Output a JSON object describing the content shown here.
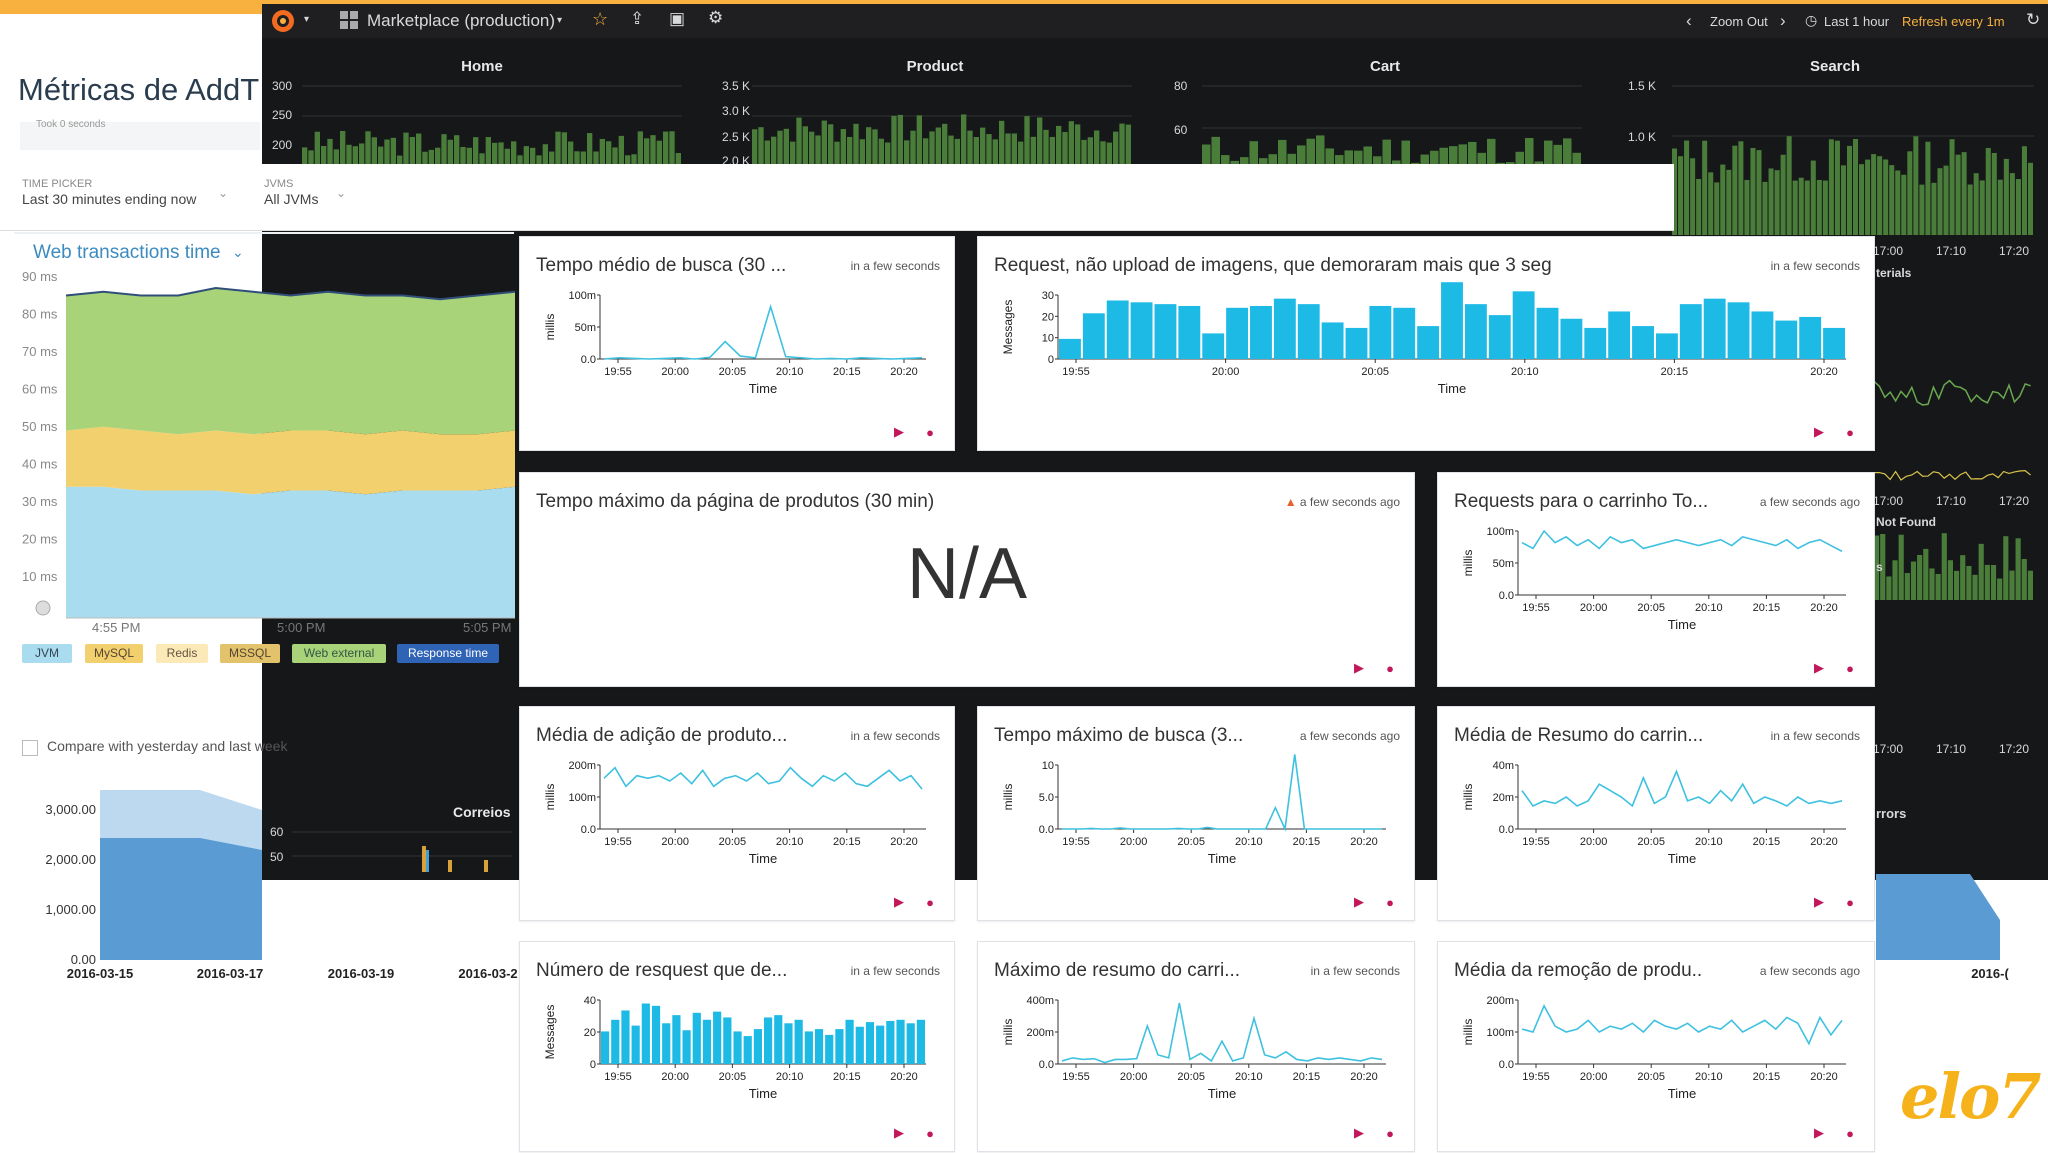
{
  "grafana": {
    "dashboard": "Marketplace (production)",
    "zoom_out": "Zoom Out",
    "time_range": "Last 1 hour",
    "refresh": "Refresh every 1m",
    "panels": [
      {
        "title": "Home",
        "yticks": [
          "300",
          "250",
          "200"
        ]
      },
      {
        "title": "Product",
        "yticks": [
          "3.5 K",
          "3.0 K",
          "2.5 K",
          "2.0 K"
        ]
      },
      {
        "title": "Cart",
        "yticks": [
          "80",
          "60"
        ]
      },
      {
        "title": "Search",
        "yticks": [
          "1.5 K",
          "1.0 K"
        ]
      }
    ],
    "right_xticks": [
      "17:00",
      "17:10",
      "17:20"
    ],
    "right_labels": [
      "terials",
      "Not Found",
      "s",
      "rrors"
    ],
    "correios": {
      "title": "Correios",
      "yticks": [
        "60",
        "50"
      ]
    }
  },
  "newrelic": {
    "title": "Métricas de AddT",
    "took": "Took 0 seconds",
    "time_picker_label": "TIME PICKER",
    "time_picker_value": "Last 30 minutes ending now",
    "jvms_label": "JVMS",
    "jvms_value": "All JVMs",
    "web_tx_title": "Web transactions time",
    "yticks": [
      "90 ms",
      "80 ms",
      "70 ms",
      "60 ms",
      "50 ms",
      "40 ms",
      "30 ms",
      "20 ms",
      "10 ms"
    ],
    "xticks": [
      "4:55 PM",
      "5:00 PM",
      "5:05 PM"
    ],
    "legend": [
      "JVM",
      "MySQL",
      "Redis",
      "MSSQL",
      "Web external",
      "Response time"
    ],
    "compare": "Compare with yesterday and last week",
    "bottom_yticks": [
      "3,000.00",
      "2,000.00",
      "1,000.00",
      "0.00"
    ],
    "bottom_xticks": [
      "2016-03-15",
      "2016-03-17",
      "2016-03-19",
      "2016-03-2",
      "2016-("
    ]
  },
  "panels": [
    {
      "title": "Tempo médio de busca (30 ...",
      "time": "in a few seconds",
      "ylabel": "millis",
      "yticks": [
        "100m",
        "50m",
        "0.0"
      ],
      "xlabel": "Time"
    },
    {
      "title": "Request, não upload de imagens, que demoraram mais que 3 seg",
      "time": "in a few seconds",
      "ylabel": "Messages",
      "yticks": [
        "30",
        "20",
        "10",
        "0"
      ],
      "xlabel": "Time"
    },
    {
      "title": "Tempo máximo da página de produtos (30 min)",
      "time": "a few seconds ago",
      "value": "N/A"
    },
    {
      "title": "Requests para o carrinho To...",
      "time": "a few seconds ago",
      "ylabel": "millis",
      "yticks": [
        "100m",
        "50m",
        "0.0"
      ],
      "xlabel": "Time"
    },
    {
      "title": "Média de adição de produto...",
      "time": "in a few seconds",
      "ylabel": "millis",
      "yticks": [
        "200m",
        "100m",
        "0.0"
      ],
      "xlabel": "Time"
    },
    {
      "title": "Tempo máximo de busca (3...",
      "time": "a few seconds ago",
      "ylabel": "millis",
      "yticks": [
        "10",
        "5.0",
        "0.0"
      ],
      "xlabel": "Time"
    },
    {
      "title": "Média de Resumo do carrin...",
      "time": "in a few seconds",
      "ylabel": "millis",
      "yticks": [
        "40m",
        "20m",
        "0.0"
      ],
      "xlabel": "Time"
    },
    {
      "title": "Número de resquest que de...",
      "time": "in a few seconds",
      "ylabel": "Messages",
      "yticks": [
        "40",
        "20",
        "0"
      ],
      "xlabel": "Time"
    },
    {
      "title": "Máximo de resumo do carri...",
      "time": "in a few seconds",
      "ylabel": "millis",
      "yticks": [
        "400m",
        "200m",
        "0.0"
      ],
      "xlabel": "Time"
    },
    {
      "title": "Média da remoção de produ..",
      "time": "a few seconds ago",
      "ylabel": "millis",
      "yticks": [
        "200m",
        "100m",
        "0.0"
      ],
      "xlabel": "Time"
    }
  ],
  "panel_xticks": [
    "19:55",
    "20:00",
    "20:05",
    "20:10",
    "20:15",
    "20:20"
  ],
  "brand": "elo7",
  "colors": {
    "accent": "#f8b03e",
    "bar": "#1ebae6",
    "line": "#3ec1e0",
    "grafana_green": "#4a7d3a"
  }
}
